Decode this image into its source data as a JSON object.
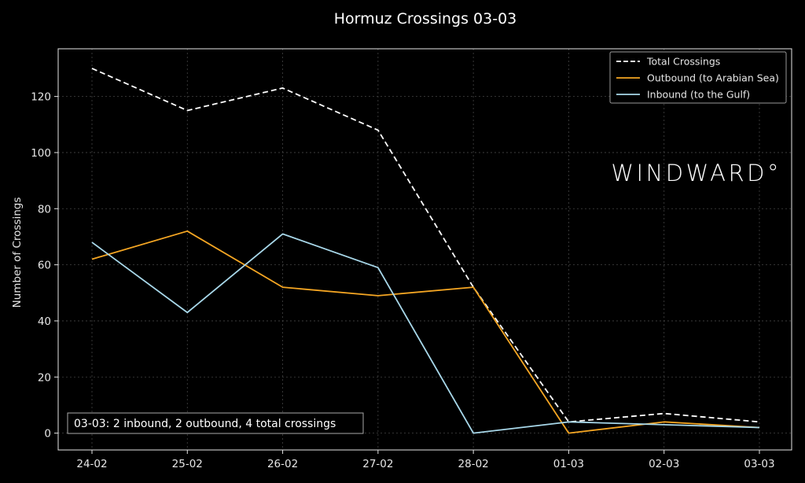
{
  "chart_data": {
    "type": "line",
    "title": "Hormuz Crossings 03-03",
    "xlabel": "",
    "ylabel": "Number of Crossings",
    "categories": [
      "24-02",
      "25-02",
      "26-02",
      "27-02",
      "28-02",
      "01-03",
      "02-03",
      "03-03"
    ],
    "yticks": [
      0,
      20,
      40,
      60,
      80,
      100,
      120
    ],
    "ylim": [
      -6,
      137
    ],
    "grid": true,
    "legend_position": "top-right",
    "series": [
      {
        "name": "Total Crossings",
        "values": [
          130,
          115,
          123,
          108,
          52,
          4,
          7,
          4
        ],
        "color": "#ffffff",
        "style": "dashed"
      },
      {
        "name": "Outbound (to Arabian Sea)",
        "values": [
          62,
          72,
          52,
          49,
          52,
          0,
          4,
          2
        ],
        "color": "#f5a623",
        "style": "solid"
      },
      {
        "name": "Inbound (to the Gulf)",
        "values": [
          68,
          43,
          71,
          59,
          0,
          4,
          3,
          2
        ],
        "color": "#a8d8ea",
        "style": "solid"
      }
    ],
    "annotation": "03-03: 2 inbound, 2 outbound, 4 total crossings",
    "watermark": "WINDWARD°"
  }
}
